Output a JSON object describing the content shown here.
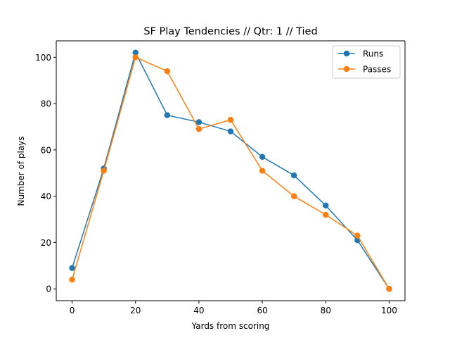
{
  "chart_data": {
    "type": "line",
    "title": "SF Play Tendencies // Qtr: 1 // Tied",
    "xlabel": "Yards from scoring",
    "ylabel": "Number of plays",
    "x": [
      0,
      10,
      20,
      30,
      40,
      50,
      60,
      70,
      80,
      90,
      100
    ],
    "xlim": [
      -5,
      105
    ],
    "ylim": [
      -5.1,
      107.1
    ],
    "xticks": [
      0,
      20,
      40,
      60,
      80,
      100
    ],
    "yticks": [
      0,
      20,
      40,
      60,
      80,
      100
    ],
    "grid": false,
    "legend_position": "upper right",
    "markers": "circle",
    "series": [
      {
        "name": "Runs",
        "color": "#1f77b4",
        "values": [
          9,
          52,
          102,
          75,
          72,
          68,
          57,
          49,
          36,
          21,
          0
        ]
      },
      {
        "name": "Passes",
        "color": "#ff7f0e",
        "values": [
          4,
          51,
          100,
          94,
          69,
          73,
          51,
          40,
          32,
          23,
          0
        ]
      }
    ]
  }
}
